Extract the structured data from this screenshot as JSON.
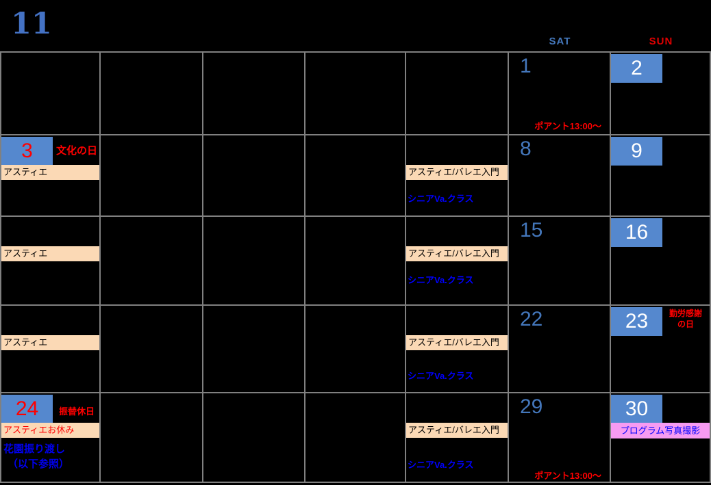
{
  "calendar": {
    "title_month": "11",
    "headers": {
      "sat": "SAT",
      "sun": "SUN"
    },
    "days": {
      "d1": "1",
      "d2": "2",
      "d3": "3",
      "d8": "8",
      "d9": "9",
      "d15": "15",
      "d16": "16",
      "d22": "22",
      "d23": "23",
      "d24": "24",
      "d29": "29",
      "d30": "30"
    },
    "labels": {
      "astier": "アスティエ",
      "astier_ballet_intro": "アスティエ/バレエ入門",
      "senior_va_class": "シニアVa.クラス",
      "pointe_1300": "ポアント13:00～",
      "culture_day": "文化の日",
      "labor_thanksgiving_line1": "勤労感謝",
      "labor_thanksgiving_line2": "の日",
      "substitute_holiday": "振替休日",
      "hanazono_transfer": "花園振り渡し",
      "see_below": "（以下参照）",
      "astier_closed": "アスティエお休み",
      "program_photo_shoot": "プログラム写真撮影"
    },
    "colors": {
      "background": "#000000",
      "grid_line": "#808080",
      "title_blue": "#4472C4",
      "sat_header_blue": "#4477BB",
      "sun_header_red": "#E00000",
      "day_number_blue": "#4477BB",
      "day_box_fill_blue": "#5588CE",
      "holiday_red": "#FF0000",
      "class_text_blue": "#0000FF",
      "peach_bar_fill": "#FBD9B5",
      "pink_bar_fill": "#F79BF2"
    }
  }
}
